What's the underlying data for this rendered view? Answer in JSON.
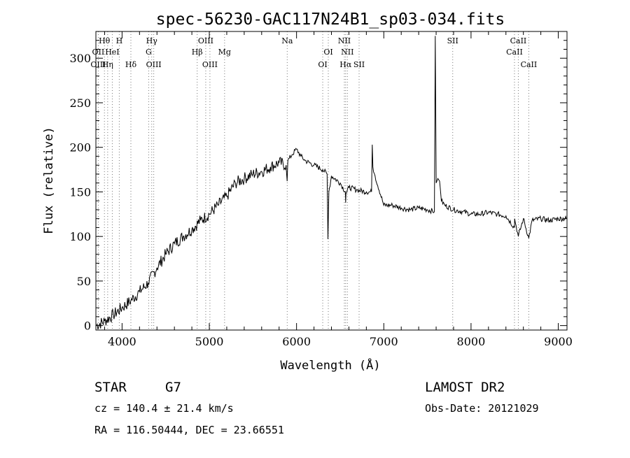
{
  "chart_data": {
    "type": "line",
    "title": "spec-56230-GAC117N24B1_sp03-034.fits",
    "xlabel": "Wavelength (Å)",
    "ylabel": "Flux (relative)",
    "xlim": [
      3700,
      9100
    ],
    "ylim": [
      -5,
      330
    ],
    "xticks": [
      4000,
      5000,
      6000,
      7000,
      8000,
      9000
    ],
    "yticks": [
      0,
      50,
      100,
      150,
      200,
      250,
      300
    ],
    "grid": false,
    "series": [
      {
        "x": [
          3700,
          3800,
          3900,
          4000,
          4100,
          4200,
          4300,
          4400,
          4500,
          4600,
          4700,
          4800,
          4900,
          5000,
          5100,
          5200,
          5300,
          5400,
          5500,
          5600,
          5700,
          5800,
          5880,
          5892,
          5900,
          5950,
          6000,
          6050,
          6100,
          6200,
          6300,
          6350,
          6360,
          6370,
          6400,
          6500,
          6560,
          6563,
          6566,
          6600,
          6700,
          6800,
          6860,
          6868,
          6875,
          6900,
          7000,
          7100,
          7200,
          7300,
          7400,
          7500,
          7580,
          7590,
          7600,
          7620,
          7640,
          7660,
          7700,
          7800,
          7900,
          8000,
          8100,
          8200,
          8300,
          8400,
          8498,
          8500,
          8542,
          8600,
          8662,
          8700,
          8800,
          8900,
          9000,
          9100
        ],
        "y": [
          0,
          5,
          12,
          20,
          28,
          38,
          48,
          65,
          80,
          92,
          100,
          108,
          118,
          125,
          135,
          145,
          160,
          165,
          170,
          173,
          178,
          183,
          180,
          162,
          185,
          192,
          198,
          190,
          185,
          180,
          175,
          170,
          97,
          150,
          168,
          160,
          150,
          138,
          148,
          155,
          152,
          150,
          150,
          203,
          178,
          168,
          135,
          135,
          132,
          130,
          132,
          130,
          128,
          325,
          160,
          165,
          162,
          140,
          135,
          130,
          128,
          125,
          125,
          127,
          125,
          123,
          110,
          120,
          100,
          120,
          98,
          118,
          120,
          118,
          120,
          120
        ]
      }
    ],
    "line_ids": [
      {
        "label": "Hθ",
        "x": 3798,
        "row": 0
      },
      {
        "label": "OII",
        "x": 3727,
        "row": 1
      },
      {
        "label": "OIII",
        "x": 3727,
        "row": 2
      },
      {
        "label": "H",
        "x": 3968,
        "row": 0
      },
      {
        "label": "HeI",
        "x": 3888,
        "row": 1
      },
      {
        "label": "Hη",
        "x": 3835,
        "row": 2
      },
      {
        "label": "Hδ",
        "x": 4101,
        "row": 2
      },
      {
        "label": "Hγ",
        "x": 4340,
        "row": 0
      },
      {
        "label": "G",
        "x": 4305,
        "row": 1
      },
      {
        "label": "OIII",
        "x": 4363,
        "row": 2
      },
      {
        "label": "OIII",
        "x": 4959,
        "row": 0
      },
      {
        "label": "Hβ",
        "x": 4861,
        "row": 1
      },
      {
        "label": "OIII",
        "x": 5007,
        "row": 2
      },
      {
        "label": "Mg",
        "x": 5175,
        "row": 1
      },
      {
        "label": "Na",
        "x": 5893,
        "row": 0
      },
      {
        "label": "NII",
        "x": 6548,
        "row": 0
      },
      {
        "label": "OI",
        "x": 6364,
        "row": 1
      },
      {
        "label": "NII",
        "x": 6583,
        "row": 1
      },
      {
        "label": "OI",
        "x": 6300,
        "row": 2
      },
      {
        "label": "Hα",
        "x": 6563,
        "row": 2
      },
      {
        "label": "SII",
        "x": 6717,
        "row": 2
      },
      {
        "label": "SII",
        "x": 7790,
        "row": 0
      },
      {
        "label": "CaII",
        "x": 8542,
        "row": 0
      },
      {
        "label": "CaII",
        "x": 8498,
        "row": 1
      },
      {
        "label": "CaII",
        "x": 8662,
        "row": 2
      }
    ]
  },
  "footer": {
    "class_label": "STAR",
    "subclass": "G7",
    "survey": "LAMOST DR2",
    "redshift": "cz = 140.4 ± 21.4 km/s",
    "obs_date": "Obs-Date: 20121029",
    "coords": "RA = 116.50444, DEC =  23.66551"
  }
}
